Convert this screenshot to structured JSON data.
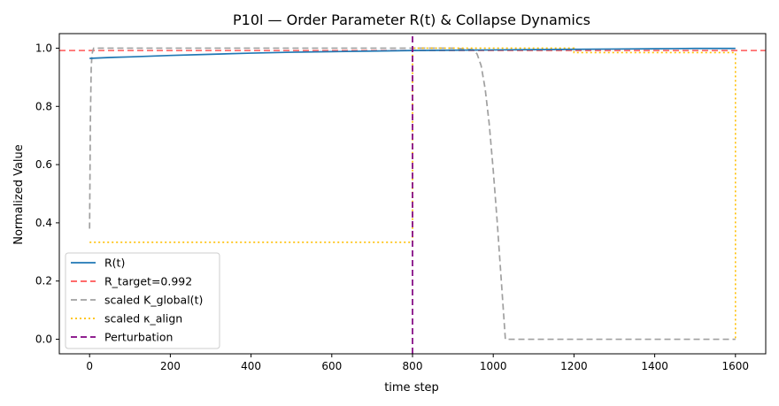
{
  "chart_data": {
    "type": "line",
    "title": "P10l — Order Parameter R(t) & Collapse Dynamics",
    "xlabel": "time step",
    "ylabel": "Normalized Value",
    "xlim": [
      -75,
      1675
    ],
    "ylim": [
      -0.05,
      1.05
    ],
    "xticks": [
      0,
      200,
      400,
      600,
      800,
      1000,
      1200,
      1400,
      1600
    ],
    "yticks": [
      0.0,
      0.2,
      0.4,
      0.6,
      0.8,
      1.0
    ],
    "legend_position": "lower-left",
    "series": [
      {
        "name": "R(t)",
        "color": "#1f77b4",
        "style": "solid",
        "x": [
          0,
          50,
          100,
          200,
          300,
          400,
          500,
          600,
          700,
          800,
          900,
          1000,
          1100,
          1200,
          1300,
          1400,
          1500,
          1600
        ],
        "y": [
          0.965,
          0.968,
          0.97,
          0.975,
          0.979,
          0.983,
          0.986,
          0.988,
          0.99,
          0.992,
          0.993,
          0.994,
          0.995,
          0.996,
          0.997,
          0.998,
          0.999,
          0.999
        ]
      },
      {
        "name": "R_target=0.992",
        "color": "#ff5555",
        "style": "dashed",
        "x": [
          -75,
          1675
        ],
        "y": [
          0.992,
          0.992
        ]
      },
      {
        "name": "scaled K_global(t)",
        "color": "#a0a0a0",
        "style": "dashed",
        "x": [
          0,
          2,
          4,
          6,
          10,
          20,
          100,
          300,
          500,
          700,
          800,
          900,
          950,
          960,
          970,
          980,
          990,
          1000,
          1010,
          1020,
          1030,
          1100,
          1300,
          1500,
          1600
        ],
        "y": [
          0.38,
          0.75,
          0.93,
          0.98,
          1.0,
          1.0,
          1.0,
          1.0,
          1.0,
          1.0,
          1.0,
          1.0,
          0.995,
          0.98,
          0.94,
          0.86,
          0.74,
          0.58,
          0.4,
          0.2,
          0.0,
          0.0,
          0.0,
          0.0,
          0.0
        ]
      },
      {
        "name": "scaled κ_align",
        "color": "#ffbf00",
        "style": "dotted",
        "x": [
          0,
          800,
          800,
          1200,
          1200,
          1600,
          1600
        ],
        "y": [
          0.333,
          0.333,
          1.0,
          1.0,
          0.985,
          0.985,
          0.0
        ]
      },
      {
        "name": "Perturbation",
        "color": "#800080",
        "style": "dashed",
        "x": [
          800,
          800
        ],
        "y": [
          -0.05,
          1.05
        ]
      }
    ]
  }
}
